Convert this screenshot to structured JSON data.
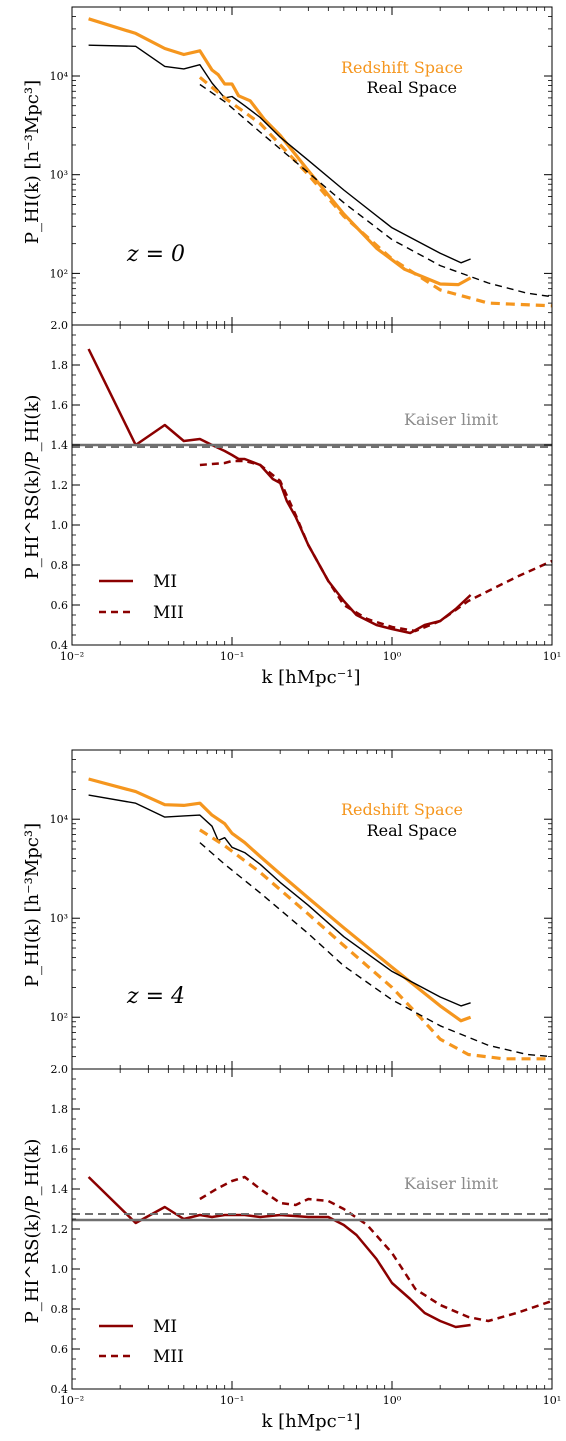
{
  "colors": {
    "redshift": "#f5961e",
    "real": "#000000",
    "ratio": "#8b0000",
    "kaiser": "#707070",
    "kaiser_text": "#8c8c8c"
  },
  "labels": {
    "redshift_space": "Redshift Space",
    "real_space": "Real Space",
    "kaiser_limit": "Kaiser limit",
    "legend_mi": "MI",
    "legend_mii": "MII",
    "ylabel_power": "P_HI(k)  [h⁻³Mpc³]",
    "ylabel_ratio": "P_HI^RS(k)/P_HI(k)",
    "xlabel": "k  [hMpc⁻¹]"
  },
  "chart_data": [
    {
      "type": "line",
      "panel": "power",
      "annotation": "z = 0",
      "xscale": "log",
      "yscale": "log",
      "xlim": [
        0.01,
        10
      ],
      "ylim": [
        30,
        50000
      ],
      "xticks": [
        "10⁻²",
        "10⁻¹",
        "10⁰",
        "10¹"
      ],
      "yticks": [
        "10²",
        "10³",
        "10⁴"
      ],
      "series": [
        {
          "style": "redshift-solid",
          "x": [
            0.0127,
            0.025,
            0.038,
            0.05,
            0.063,
            0.075,
            0.082,
            0.09,
            0.1,
            0.11,
            0.13,
            0.16,
            0.2,
            0.3,
            0.5,
            0.8,
            1.2,
            2.0,
            2.6,
            3.1
          ],
          "y": [
            38000,
            27000,
            19000,
            16500,
            18000,
            11500,
            10300,
            8300,
            8300,
            6300,
            5600,
            3600,
            2500,
            1100,
            400,
            180,
            110,
            78,
            77,
            90
          ]
        },
        {
          "style": "real-solid",
          "x": [
            0.0127,
            0.025,
            0.038,
            0.05,
            0.063,
            0.075,
            0.09,
            0.1,
            0.12,
            0.15,
            0.2,
            0.3,
            0.5,
            1.0,
            2.0,
            2.7,
            3.1
          ],
          "y": [
            20500,
            20000,
            12500,
            11800,
            13000,
            8500,
            6000,
            6200,
            5000,
            3800,
            2400,
            1400,
            700,
            290,
            160,
            128,
            140
          ]
        },
        {
          "style": "redshift-dashed",
          "x": [
            0.063,
            0.09,
            0.15,
            0.3,
            0.5,
            1.0,
            2.0,
            4.0,
            10.0
          ],
          "y": [
            9700,
            6000,
            3300,
            1000,
            380,
            140,
            68,
            50,
            47
          ]
        },
        {
          "style": "real-dashed",
          "x": [
            0.063,
            0.09,
            0.15,
            0.3,
            0.5,
            1.0,
            2.0,
            4.0,
            7.0,
            10.0
          ],
          "y": [
            8200,
            5500,
            2700,
            1050,
            520,
            220,
            120,
            80,
            63,
            58
          ]
        }
      ]
    },
    {
      "type": "line",
      "panel": "ratio",
      "xscale": "log",
      "yscale": "linear",
      "xlim": [
        0.01,
        10
      ],
      "ylim": [
        0.4,
        2.0
      ],
      "xticks": [
        "10⁻²",
        "10⁻¹",
        "10⁰",
        "10¹"
      ],
      "yticks": [
        "0.4",
        "0.6",
        "0.8",
        "1.0",
        "1.2",
        "1.4",
        "1.6",
        "1.8",
        "2.0"
      ],
      "series": [
        {
          "name": "MI",
          "style": "ratio-solid",
          "x": [
            0.0127,
            0.025,
            0.038,
            0.05,
            0.063,
            0.075,
            0.09,
            0.1,
            0.11,
            0.12,
            0.15,
            0.18,
            0.2,
            0.22,
            0.25,
            0.3,
            0.4,
            0.5,
            0.6,
            0.8,
            1.0,
            1.3,
            1.6,
            2.0,
            2.5,
            3.1
          ],
          "y": [
            1.88,
            1.4,
            1.5,
            1.42,
            1.43,
            1.4,
            1.37,
            1.35,
            1.33,
            1.33,
            1.3,
            1.23,
            1.21,
            1.12,
            1.04,
            0.9,
            0.72,
            0.62,
            0.55,
            0.5,
            0.48,
            0.46,
            0.5,
            0.52,
            0.58,
            0.65
          ]
        },
        {
          "name": "MII",
          "style": "ratio-dashed",
          "x": [
            0.063,
            0.09,
            0.1,
            0.12,
            0.15,
            0.2,
            0.25,
            0.3,
            0.4,
            0.5,
            0.7,
            1.0,
            1.4,
            2.0,
            3.0,
            4.0,
            6.0,
            10.0
          ],
          "y": [
            1.3,
            1.31,
            1.32,
            1.32,
            1.3,
            1.22,
            1.05,
            0.9,
            0.72,
            0.6,
            0.53,
            0.49,
            0.47,
            0.52,
            0.62,
            0.67,
            0.74,
            0.82
          ]
        },
        {
          "name": "",
          "style": "kaiser-solid",
          "x": [
            0.01,
            10
          ],
          "y": [
            1.4,
            1.4
          ]
        },
        {
          "name": "",
          "style": "kaiser-dashed",
          "x": [
            0.01,
            10
          ],
          "y": [
            1.39,
            1.39
          ]
        }
      ]
    },
    {
      "type": "line",
      "panel": "power",
      "annotation": "z = 4",
      "xscale": "log",
      "yscale": "log",
      "xlim": [
        0.01,
        10
      ],
      "ylim": [
        30,
        50000
      ],
      "xticks": [
        "10⁻²",
        "10⁻¹",
        "10⁰",
        "10¹"
      ],
      "yticks": [
        "10²",
        "10³",
        "10⁴"
      ],
      "series": [
        {
          "style": "redshift-solid",
          "x": [
            0.0127,
            0.025,
            0.038,
            0.05,
            0.063,
            0.075,
            0.09,
            0.1,
            0.12,
            0.15,
            0.2,
            0.3,
            0.5,
            1.0,
            2.0,
            2.7,
            3.1
          ],
          "y": [
            25500,
            19000,
            14000,
            13800,
            14500,
            11000,
            9000,
            7200,
            5800,
            4200,
            2800,
            1600,
            800,
            320,
            130,
            92,
            100
          ]
        },
        {
          "style": "real-solid",
          "x": [
            0.0127,
            0.025,
            0.038,
            0.05,
            0.063,
            0.075,
            0.082,
            0.09,
            0.1,
            0.12,
            0.15,
            0.2,
            0.3,
            0.5,
            1.0,
            2.0,
            2.7,
            3.1
          ],
          "y": [
            17500,
            14500,
            10500,
            10800,
            11000,
            8500,
            6100,
            6500,
            5200,
            4600,
            3500,
            2300,
            1350,
            650,
            290,
            160,
            130,
            140
          ]
        },
        {
          "style": "redshift-dashed",
          "x": [
            0.063,
            0.09,
            0.15,
            0.3,
            0.5,
            0.7,
            1.0,
            1.5,
            2.0,
            3.0,
            5.0,
            10.0
          ],
          "y": [
            7800,
            5400,
            2900,
            1100,
            530,
            330,
            200,
            100,
            60,
            42,
            38,
            38
          ]
        },
        {
          "style": "real-dashed",
          "x": [
            0.063,
            0.09,
            0.15,
            0.3,
            0.5,
            1.0,
            2.0,
            4.0,
            7.0,
            10.0
          ],
          "y": [
            5800,
            3500,
            1800,
            700,
            330,
            150,
            82,
            52,
            42,
            40
          ]
        }
      ]
    },
    {
      "type": "line",
      "panel": "ratio",
      "xscale": "log",
      "yscale": "linear",
      "xlim": [
        0.01,
        10
      ],
      "ylim": [
        0.4,
        2.0
      ],
      "xticks": [
        "10⁻²",
        "10⁻¹",
        "10⁰",
        "10¹"
      ],
      "yticks": [
        "0.4",
        "0.6",
        "0.8",
        "1.0",
        "1.2",
        "1.4",
        "1.6",
        "1.8",
        "2.0"
      ],
      "series": [
        {
          "name": "MI",
          "style": "ratio-solid",
          "x": [
            0.0127,
            0.025,
            0.038,
            0.05,
            0.063,
            0.075,
            0.09,
            0.1,
            0.12,
            0.15,
            0.2,
            0.3,
            0.4,
            0.5,
            0.6,
            0.8,
            1.0,
            1.3,
            1.6,
            2.0,
            2.5,
            3.1
          ],
          "y": [
            1.46,
            1.23,
            1.31,
            1.25,
            1.27,
            1.26,
            1.27,
            1.27,
            1.27,
            1.26,
            1.27,
            1.26,
            1.26,
            1.22,
            1.17,
            1.05,
            0.93,
            0.85,
            0.78,
            0.74,
            0.71,
            0.72
          ]
        },
        {
          "name": "MII",
          "style": "ratio-dashed",
          "x": [
            0.063,
            0.08,
            0.1,
            0.12,
            0.15,
            0.2,
            0.25,
            0.3,
            0.4,
            0.5,
            0.7,
            1.0,
            1.4,
            2.0,
            3.0,
            4.0,
            6.0,
            10.0
          ],
          "y": [
            1.35,
            1.4,
            1.44,
            1.46,
            1.4,
            1.33,
            1.32,
            1.35,
            1.34,
            1.3,
            1.22,
            1.08,
            0.9,
            0.82,
            0.76,
            0.74,
            0.78,
            0.84
          ]
        },
        {
          "name": "",
          "style": "kaiser-solid",
          "x": [
            0.01,
            10
          ],
          "y": [
            1.245,
            1.245
          ]
        },
        {
          "name": "",
          "style": "kaiser-dashed",
          "x": [
            0.01,
            10
          ],
          "y": [
            1.275,
            1.275
          ]
        }
      ]
    }
  ]
}
